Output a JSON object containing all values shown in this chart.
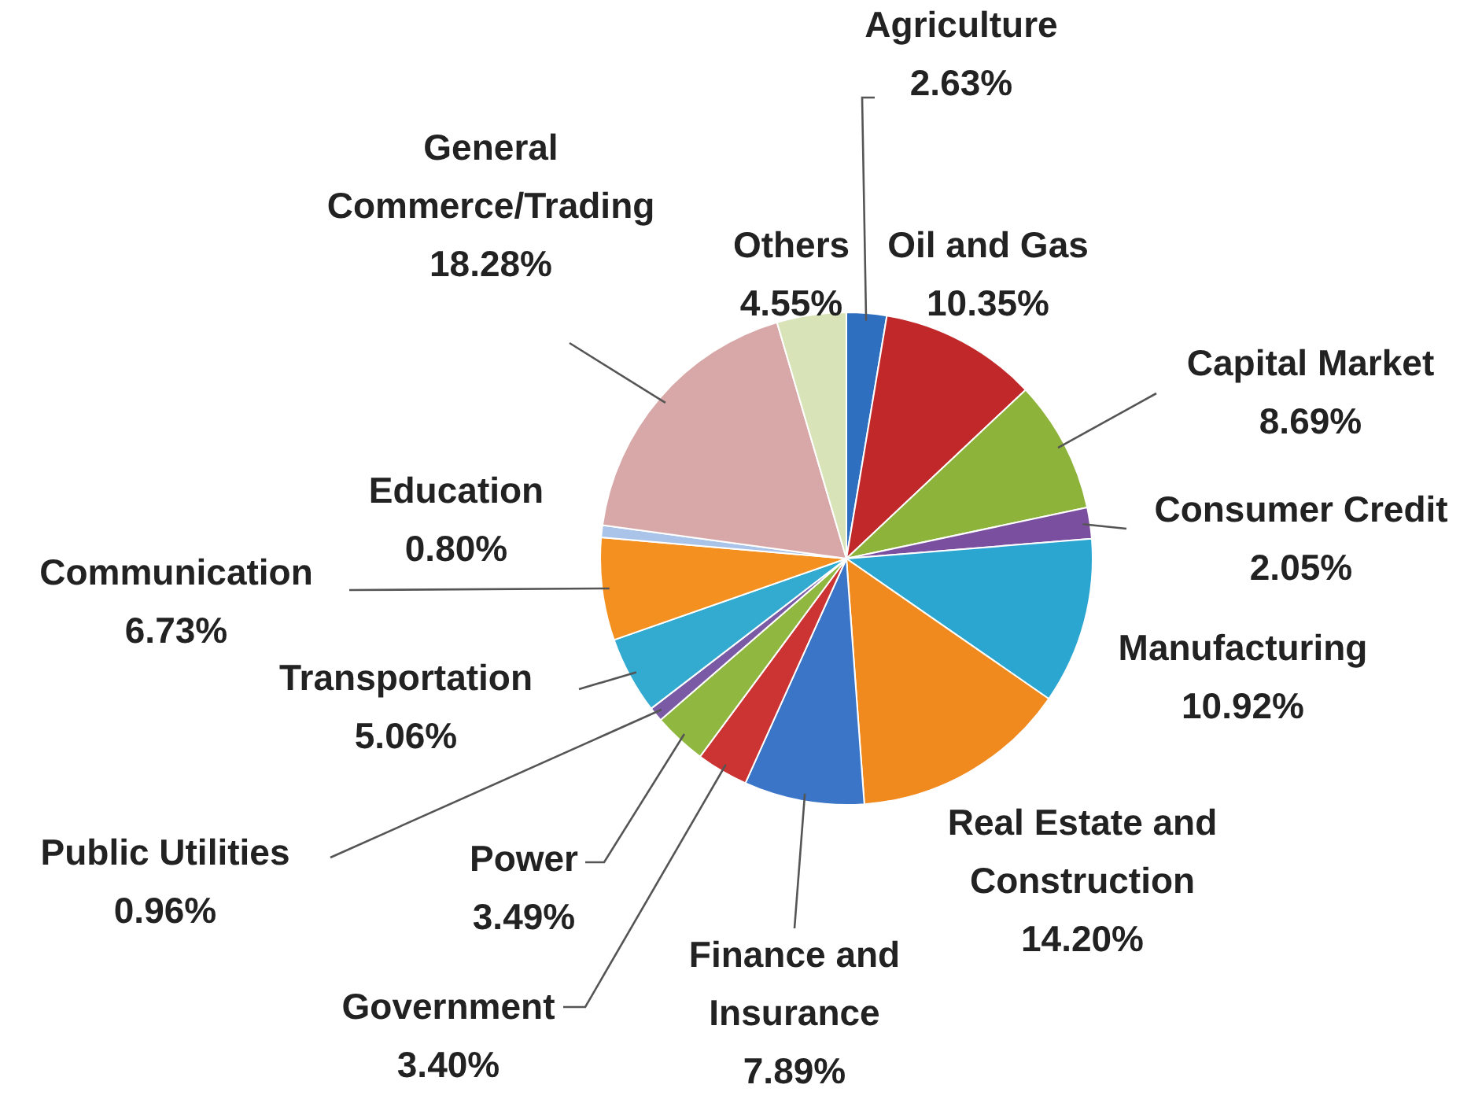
{
  "chart_data": {
    "type": "pie",
    "categories": [
      "Agriculture",
      "Oil and Gas",
      "Capital Market",
      "Consumer Credit",
      "Manufacturing",
      "Real Estate and Construction",
      "Finance and Insurance",
      "Government",
      "Power",
      "Public Utilities",
      "Transportation",
      "Communication",
      "Education",
      "General Commerce/Trading",
      "Others"
    ],
    "values": [
      2.63,
      10.35,
      8.69,
      2.05,
      10.92,
      14.2,
      7.89,
      3.4,
      3.49,
      0.96,
      5.06,
      6.73,
      0.8,
      18.28,
      4.55
    ],
    "value_labels": [
      "2.63%",
      "10.35%",
      "8.69%",
      "2.05%",
      "10.92%",
      "14.20%",
      "7.89%",
      "3.40%",
      "3.49%",
      "0.96%",
      "5.06%",
      "6.73%",
      "0.80%",
      "18.28%",
      "4.55%"
    ],
    "colors": [
      "#2e6fc0",
      "#c0282a",
      "#8db33a",
      "#7b4fa0",
      "#2aa6d0",
      "#f08a1e",
      "#3a75c8",
      "#cc3333",
      "#90b840",
      "#7a5aa5",
      "#33aad0",
      "#f39020",
      "#a9c4e8",
      "#d8a8a8",
      "#d8e4b8"
    ],
    "legend": false
  }
}
